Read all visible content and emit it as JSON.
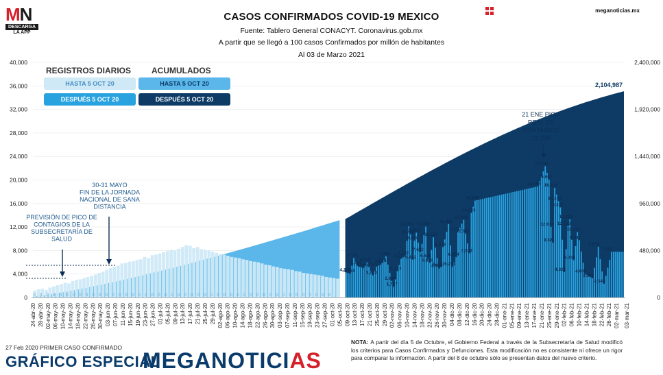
{
  "header": {
    "title": "CASOS CONFIRMADOS COVID-19 MEXICO",
    "source": "Fuente: Tablero General CONACYT. Coronavirus.gob.mx",
    "subtitle": "A partir que se llegó a 100 casos Confirmados por millón de habitantes",
    "date": "Al 03 de Marzo 2021",
    "site": "meganoticias.mx"
  },
  "logo": {
    "mn_m": "M",
    "mn_n": "N",
    "descarga": "DESCARGA",
    "app": "LA APP"
  },
  "legend": {
    "daily_title": "REGISTROS DIARIOS",
    "cum_title": "ACUMULADOS",
    "daily_before": "HASTA 5 OCT 20",
    "daily_after": "DESPUÉS 5 OCT 20",
    "cum_before": "HASTA 5 OCT 20",
    "cum_after": "DESPUÉS 5 OCT 20"
  },
  "footer": {
    "first_case": "27 Feb 2020 PRIMER CASO CONFIRMADO",
    "grafico": "GRÁFICO ESPECIAL",
    "brand": "MEGANOTICIAS",
    "note_label": "NOTA:",
    "note": " A partir del día 5 de Octubre, el Gobierno Federal a través de la Subsecretaría de Salud modificó los criterios para Casos Confirmados y Defunciones. Esta modificación no es consistente ni ofrece un rigor para comparar la información. A partir del 8 de octubre sólo se presentan datos del nuevo criterio."
  },
  "colors": {
    "daily_before": "#cfe9f7",
    "daily_after": "#29a3e0",
    "cum_before": "#5bb7ea",
    "cum_after": "#0d3b66",
    "brand_dark": "#0a3b6b",
    "brand_red": "#d6202a"
  },
  "chart_data": {
    "type": "bar",
    "y_left": {
      "min": 0,
      "max": 40000,
      "ticks": [
        0,
        4000,
        8000,
        12000,
        16000,
        20000,
        24000,
        28000,
        32000,
        36000,
        40000
      ],
      "tick_labels": [
        "0",
        "4,000",
        "8,000",
        "12,000",
        "16,000",
        "20,000",
        "24,000",
        "28,000",
        "32,000",
        "36,000",
        "40,000"
      ]
    },
    "y_right": {
      "min": 0,
      "max": 2400000,
      "ticks": [
        0,
        480000,
        960000,
        1440000,
        1920000,
        2400000
      ],
      "tick_labels": [
        "0",
        "480,000",
        "960,000",
        "1,440,000",
        "1,920,000",
        "2,400,000"
      ]
    },
    "x_tick_labels": [
      "24-abr-20",
      "28-abr-20",
      "02-may-20",
      "06-may-20",
      "10-may-20",
      "14-may-20",
      "18-may-20",
      "22-may-20",
      "26-may-20",
      "30-may-20",
      "03-jun-20",
      "07-jun-20",
      "11-jun-20",
      "15-jun-20",
      "19-jun-20",
      "23-jun-20",
      "27-jun-20",
      "01-jul-20",
      "05-jul-20",
      "09-jul-20",
      "13-jul-20",
      "17-jul-20",
      "21-jul-20",
      "25-jul-20",
      "29-jul-20",
      "02-ago-20",
      "06-ago-20",
      "10-ago-20",
      "14-ago-20",
      "18-ago-20",
      "22-ago-20",
      "26-ago-20",
      "30-ago-20",
      "03-sep-20",
      "07-sep-20",
      "11-sep-20",
      "15-sep-20",
      "19-sep-20",
      "23-sep-20",
      "27-sep-20",
      "01-oct-20",
      "05-oct-20",
      "09-oct-20",
      "13-oct-20",
      "17-oct-20",
      "21-oct-20",
      "25-oct-20",
      "29-oct-20",
      "02-nov-20",
      "06-nov-20",
      "10-nov-20",
      "14-nov-20",
      "18-nov-20",
      "22-nov-20",
      "26-nov-20",
      "30-nov-20",
      "04-dic-20",
      "08-dic-20",
      "12-dic-20",
      "16-dic-20",
      "20-dic-20",
      "24-dic-20",
      "28-dic-20",
      "01-ene-21",
      "05-ene-21",
      "09-ene-21",
      "13-ene-21",
      "17-ene-21",
      "21-ene-21",
      "25-ene-21",
      "29-ene-21",
      "02-feb-21",
      "06-feb-21",
      "10-feb-21",
      "14-feb-21",
      "18-feb-21",
      "22-feb-21",
      "26-feb-21",
      "02-mar-21",
      "03-mar-21"
    ],
    "series": [
      {
        "name": "REGISTROS DIARIOS HASTA 5 OCT 20",
        "axis": "left",
        "x_range": [
          "24-abr-20",
          "05-oct-20"
        ],
        "values_estimated": [
          1200,
          1400,
          1500,
          1300,
          1700,
          1900,
          2100,
          2300,
          2500,
          2400,
          2800,
          3000,
          3100,
          3300,
          3500,
          3700,
          3900,
          4200,
          4400,
          4700,
          5000,
          5200,
          5400,
          5800,
          5900,
          6100,
          6200,
          6400,
          6500,
          6900,
          6700,
          7200,
          7300,
          7500,
          7700,
          7900,
          8100,
          8000,
          8300,
          8600,
          8900,
          8800,
          8400,
          8600,
          8200,
          8100,
          8000,
          7800,
          7600,
          7400,
          7300,
          7100,
          6900,
          6800,
          6700,
          6500,
          6400,
          6200,
          6100,
          6000,
          5800,
          5600,
          5500,
          5300,
          5200,
          5000,
          4900,
          4800,
          4700,
          4500,
          4400,
          4200,
          4100,
          4000,
          3900,
          3800,
          3700,
          3500,
          3400,
          3300,
          3200
        ]
      },
      {
        "name": "REGISTROS DIARIOS DESPUÉS 5 OCT 20",
        "axis": "left",
        "x_range": [
          "08-oct-20",
          "03-mar-21"
        ],
        "labeled_values": [
          {
            "x": "08-oct-20",
            "value": 4283
          },
          {
            "x": "10-oct-20",
            "value": 4063
          },
          {
            "x": "12-oct-20",
            "value": 6751
          },
          {
            "x": "14-oct-20",
            "value": 5447
          },
          {
            "x": "17-oct-20",
            "value": 4990
          },
          {
            "x": "19-oct-20",
            "value": 5947
          },
          {
            "x": "22-oct-20",
            "value": 3763
          },
          {
            "x": "24-oct-20",
            "value": 5229
          },
          {
            "x": "27-oct-20",
            "value": 5858
          },
          {
            "x": "29-oct-20",
            "value": 7016
          },
          {
            "x": "01-nov-20",
            "value": 2804
          },
          {
            "x": "02-nov-20",
            "value": 1787
          },
          {
            "x": "04-nov-20",
            "value": 4473
          },
          {
            "x": "06-nov-20",
            "value": 6573
          },
          {
            "x": "08-nov-20",
            "value": 7152
          },
          {
            "x": "10-nov-20",
            "value": 12081
          },
          {
            "x": "11-nov-20",
            "value": 10696
          },
          {
            "x": "12-nov-20",
            "value": 6442
          },
          {
            "x": "13-nov-20",
            "value": 9679
          },
          {
            "x": "14-nov-20",
            "value": 11022
          },
          {
            "x": "16-nov-20",
            "value": 7683
          },
          {
            "x": "19-nov-20",
            "value": 12057
          },
          {
            "x": "20-nov-20",
            "value": 6638
          },
          {
            "x": "21-nov-20",
            "value": 5889
          },
          {
            "x": "23-nov-20",
            "value": 10257
          },
          {
            "x": "26-nov-20",
            "value": 4943
          },
          {
            "x": "27-nov-20",
            "value": 5217
          },
          {
            "x": "28-nov-20",
            "value": 8579
          },
          {
            "x": "01-dic-20",
            "value": 12485
          },
          {
            "x": "03-dic-20",
            "value": 5231
          },
          {
            "x": "05-dic-20",
            "value": 6854
          },
          {
            "x": "06-dic-20",
            "value": 11271
          },
          {
            "x": "09-dic-20",
            "value": 13205
          },
          {
            "x": "10-dic-20",
            "value": 10863
          },
          {
            "x": "12-dic-20",
            "value": 7524
          },
          {
            "x": "13-dic-20",
            "value": 14393
          },
          {
            "x": "15-dic-20",
            "value": 16490
          },
          {
            "x": "17-ene-21",
            "value": 18894
          },
          {
            "x": "21-ene-21",
            "value": 22339
          },
          {
            "x": "23-ene-21",
            "value": 20057
          },
          {
            "x": "24-ene-21",
            "value": 12033
          },
          {
            "x": "25-ene-21",
            "value": 9321
          },
          {
            "x": "26-ene-21",
            "value": 18670
          },
          {
            "x": "28-ene-21",
            "value": 16374
          },
          {
            "x": "29-ene-21",
            "value": 15337
          },
          {
            "x": "31-ene-21",
            "value": 4325
          },
          {
            "x": "02-feb-21",
            "value": 12153
          },
          {
            "x": "03-feb-21",
            "value": 13289
          },
          {
            "x": "05-feb-21",
            "value": 6358
          },
          {
            "x": "07-feb-21",
            "value": 11135
          },
          {
            "x": "08-feb-21",
            "value": 9741
          },
          {
            "x": "11-feb-21",
            "value": 4009
          },
          {
            "x": "15-feb-21",
            "value": 3264
          },
          {
            "x": "18-feb-21",
            "value": 8634
          },
          {
            "x": "21-feb-21",
            "value": 2343
          },
          {
            "x": "25-feb-21",
            "value": 7793
          }
        ]
      },
      {
        "name": "ACUMULADOS HASTA 5 OCT 20",
        "axis": "right",
        "x_range": [
          "24-abr-20",
          "05-oct-20"
        ],
        "start": 12000,
        "end": 790000
      },
      {
        "name": "ACUMULADOS DESPUÉS 5 OCT 20",
        "axis": "right",
        "x_range": [
          "08-oct-20",
          "03-mar-21"
        ],
        "start": 800000,
        "end": 2104987,
        "end_label": "2,104,987"
      }
    ],
    "zero_labels_count": 46,
    "annotations": [
      {
        "text": "21 ENE PICO REAL DE CONTAGIOS 22,339",
        "x": "21-ene-21",
        "value": 22339
      },
      {
        "text": "30-31 MAYO FIN DE LA JORNADA NACIONAL DE SANA DISTANCIA",
        "x": "30-may-20"
      },
      {
        "text": "PREVISIÓN DE PICO DE CONTAGIOS DE LA SUBSECRETARÍA DE SALUD",
        "x": "10-may-20"
      }
    ]
  }
}
